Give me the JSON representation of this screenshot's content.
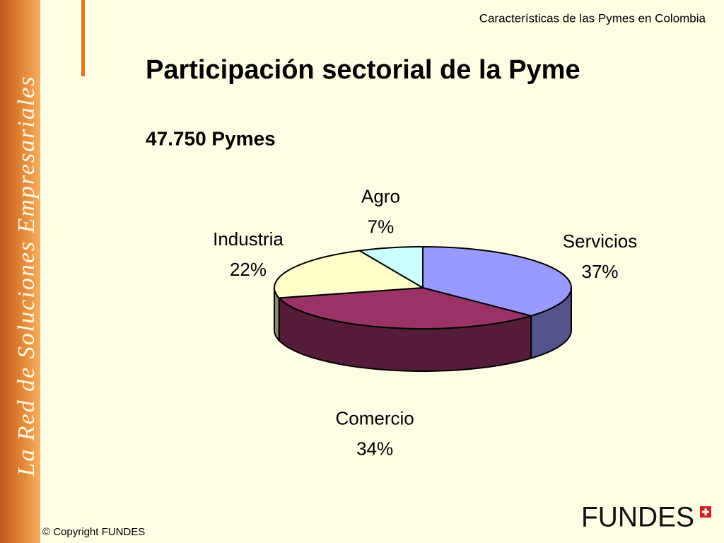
{
  "header": "Características de las Pymes en Colombia",
  "sidebar": "La Red de Soluciones Empresariales",
  "footer": "© Copyright FUNDES",
  "logo": "FUNDES",
  "chart_data": {
    "type": "pie",
    "title": "Participación sectorial de la Pyme",
    "subtitle": "47.750 Pymes",
    "categories": [
      "Servicios",
      "Comercio",
      "Industria",
      "Agro"
    ],
    "values": [
      37,
      34,
      22,
      7
    ],
    "value_labels": [
      "37%",
      "34%",
      "22%",
      "7%"
    ],
    "colors": [
      "#9999ff",
      "#993366",
      "#ffffcc",
      "#ccffff"
    ]
  }
}
